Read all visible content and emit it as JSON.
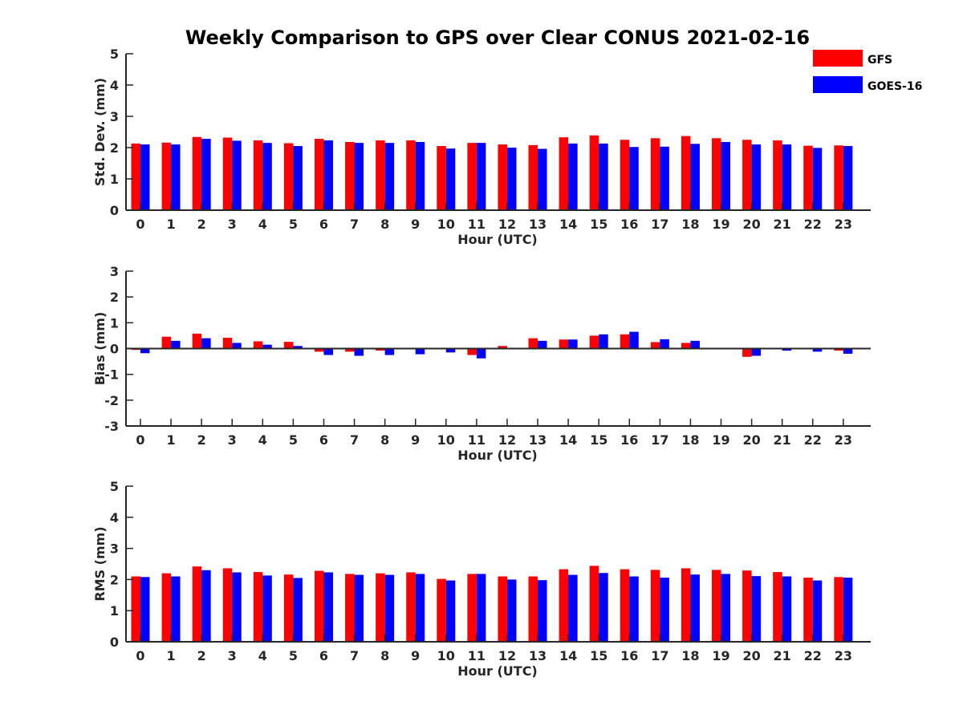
{
  "title": "Weekly Comparison to GPS over Clear CONUS 2021-02-16",
  "legend": {
    "placement": "top-right",
    "items": [
      {
        "name": "GFS",
        "color": "#ff0000"
      },
      {
        "name": "GOES-16",
        "color": "#0000ff"
      }
    ]
  },
  "chart_data": [
    {
      "type": "bar",
      "xlabel": "Hour (UTC)",
      "ylabel": "Std. Dev. (mm)",
      "ylim": [
        0,
        5
      ],
      "yticks": [
        "0",
        "1",
        "2",
        "3",
        "4",
        "5"
      ],
      "categories": [
        "0",
        "1",
        "2",
        "3",
        "4",
        "5",
        "6",
        "7",
        "8",
        "9",
        "10",
        "11",
        "12",
        "13",
        "14",
        "15",
        "16",
        "17",
        "18",
        "19",
        "20",
        "21",
        "22",
        "23"
      ],
      "series": [
        {
          "name": "GFS",
          "color": "#ff0000",
          "values": [
            2.13,
            2.16,
            2.34,
            2.32,
            2.23,
            2.14,
            2.28,
            2.18,
            2.23,
            2.23,
            2.05,
            2.15,
            2.1,
            2.08,
            2.33,
            2.39,
            2.25,
            2.3,
            2.37,
            2.3,
            2.25,
            2.23,
            2.06,
            2.07
          ]
        },
        {
          "name": "GOES-16",
          "color": "#0000ff",
          "values": [
            2.1,
            2.1,
            2.28,
            2.22,
            2.15,
            2.05,
            2.23,
            2.15,
            2.15,
            2.18,
            1.97,
            2.15,
            2.0,
            1.96,
            2.13,
            2.13,
            2.02,
            2.03,
            2.12,
            2.18,
            2.1,
            2.1,
            1.99,
            2.05
          ]
        }
      ]
    },
    {
      "type": "bar",
      "xlabel": "Hour (UTC)",
      "ylabel": "Bias (mm)",
      "ylim": [
        -3,
        3
      ],
      "yticks": [
        "-3",
        "-2",
        "-1",
        "0",
        "1",
        "2",
        "3"
      ],
      "categories": [
        "0",
        "1",
        "2",
        "3",
        "4",
        "5",
        "6",
        "7",
        "8",
        "9",
        "10",
        "11",
        "12",
        "13",
        "14",
        "15",
        "16",
        "17",
        "18",
        "19",
        "20",
        "21",
        "22",
        "23"
      ],
      "series": [
        {
          "name": "GFS",
          "color": "#ff0000",
          "values": [
            -0.05,
            0.46,
            0.58,
            0.42,
            0.28,
            0.26,
            -0.12,
            -0.12,
            -0.08,
            -0.02,
            -0.03,
            -0.25,
            0.1,
            0.4,
            0.35,
            0.5,
            0.55,
            0.25,
            0.22,
            -0.02,
            -0.32,
            -0.03,
            -0.03,
            -0.08
          ]
        },
        {
          "name": "GOES-16",
          "color": "#0000ff",
          "values": [
            -0.18,
            0.3,
            0.4,
            0.22,
            0.15,
            0.1,
            -0.25,
            -0.28,
            -0.25,
            -0.22,
            -0.15,
            -0.38,
            0.0,
            0.3,
            0.35,
            0.55,
            0.65,
            0.36,
            0.3,
            0.02,
            -0.28,
            -0.08,
            -0.12,
            -0.2
          ]
        }
      ]
    },
    {
      "type": "bar",
      "xlabel": "Hour (UTC)",
      "ylabel": "RMS (mm)",
      "ylim": [
        0,
        5
      ],
      "yticks": [
        "0",
        "1",
        "2",
        "3",
        "4",
        "5"
      ],
      "categories": [
        "0",
        "1",
        "2",
        "3",
        "4",
        "5",
        "6",
        "7",
        "8",
        "9",
        "10",
        "11",
        "12",
        "13",
        "14",
        "15",
        "16",
        "17",
        "18",
        "19",
        "20",
        "21",
        "22",
        "23"
      ],
      "series": [
        {
          "name": "GFS",
          "color": "#ff0000",
          "values": [
            2.1,
            2.2,
            2.42,
            2.36,
            2.24,
            2.16,
            2.28,
            2.18,
            2.2,
            2.23,
            2.02,
            2.18,
            2.1,
            2.1,
            2.33,
            2.44,
            2.33,
            2.31,
            2.36,
            2.31,
            2.29,
            2.24,
            2.06,
            2.08
          ]
        },
        {
          "name": "GOES-16",
          "color": "#0000ff",
          "values": [
            2.08,
            2.1,
            2.3,
            2.23,
            2.13,
            2.05,
            2.23,
            2.15,
            2.15,
            2.18,
            1.97,
            2.18,
            2.0,
            1.98,
            2.15,
            2.21,
            2.1,
            2.06,
            2.16,
            2.18,
            2.11,
            2.1,
            1.97,
            2.06
          ]
        }
      ]
    }
  ]
}
